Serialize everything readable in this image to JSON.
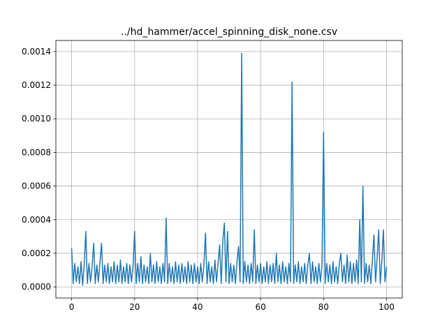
{
  "chart_data": {
    "type": "line",
    "title": "../hd_hammer/accel_spinning_disk_none.csv",
    "x": [
      0,
      0.5,
      1,
      1.5,
      2,
      2.5,
      3,
      3.5,
      4,
      4.5,
      5,
      5.5,
      6,
      6.5,
      7,
      7.5,
      8,
      8.5,
      9,
      9.5,
      10,
      10.5,
      11,
      11.5,
      12,
      12.5,
      13,
      13.5,
      14,
      14.5,
      15,
      15.5,
      16,
      16.5,
      17,
      17.5,
      18,
      18.5,
      19,
      19.5,
      20,
      20.5,
      21,
      21.5,
      22,
      22.5,
      23,
      23.5,
      24,
      24.5,
      25,
      25.5,
      26,
      26.5,
      27,
      27.5,
      28,
      28.5,
      29,
      29.5,
      30,
      30.5,
      31,
      31.5,
      32,
      32.5,
      33,
      33.5,
      34,
      34.5,
      35,
      35.5,
      36,
      36.5,
      37,
      37.5,
      38,
      38.5,
      39,
      39.5,
      40,
      40.5,
      41,
      41.5,
      42,
      42.5,
      43,
      43.5,
      44,
      44.5,
      45,
      45.5,
      46,
      46.5,
      47,
      47.5,
      48,
      48.5,
      49,
      49.5,
      50,
      50.5,
      51,
      51.5,
      52,
      52.5,
      53,
      53.5,
      54,
      54.5,
      55,
      55.5,
      56,
      56.5,
      57,
      57.5,
      58,
      58.5,
      59,
      59.5,
      60,
      60.5,
      61,
      61.5,
      62,
      62.5,
      63,
      63.5,
      64,
      64.5,
      65,
      65.5,
      66,
      66.5,
      67,
      67.5,
      68,
      68.5,
      69,
      69.5,
      70,
      70.5,
      71,
      71.5,
      72,
      72.5,
      73,
      73.5,
      74,
      74.5,
      75,
      75.5,
      76,
      76.5,
      77,
      77.5,
      78,
      78.5,
      79,
      79.5,
      80,
      80.5,
      81,
      81.5,
      82,
      82.5,
      83,
      83.5,
      84,
      84.5,
      85,
      85.5,
      86,
      86.5,
      87,
      87.5,
      88,
      88.5,
      89,
      89.5,
      90,
      90.5,
      91,
      91.5,
      92,
      92.5,
      93,
      93.5,
      94,
      94.5,
      95,
      95.5,
      96,
      96.5,
      97,
      97.5,
      98,
      98.5,
      99,
      99.5,
      100
    ],
    "series": [
      {
        "color": "#1f77b4",
        "values": [
          0.00023,
          2e-05,
          0.00014,
          3e-05,
          0.00012,
          2e-05,
          0.00015,
          1e-05,
          0.00013,
          0.00033,
          2e-05,
          0.00014,
          3e-05,
          0.00012,
          0.00026,
          2e-05,
          0.00013,
          3e-05,
          0.00015,
          0.00026,
          2e-05,
          0.00013,
          3e-05,
          0.00014,
          2e-05,
          0.00012,
          3e-05,
          0.00015,
          2e-05,
          0.00013,
          3e-05,
          0.00016,
          2e-05,
          0.00012,
          3e-05,
          0.00014,
          2e-05,
          0.00013,
          3e-05,
          0.00012,
          0.00033,
          2e-05,
          0.00014,
          3e-05,
          0.00018,
          2e-05,
          0.00013,
          3e-05,
          0.00012,
          2e-05,
          0.0002,
          3e-05,
          0.00013,
          2e-05,
          0.00015,
          3e-05,
          0.00012,
          2e-05,
          0.00014,
          3e-05,
          0.00041,
          2e-05,
          0.00014,
          3e-05,
          0.00012,
          2e-05,
          0.00015,
          3e-05,
          0.00013,
          2e-05,
          0.00014,
          3e-05,
          0.00012,
          2e-05,
          0.00015,
          3e-05,
          0.00013,
          2e-05,
          0.00014,
          3e-05,
          0.00012,
          2e-05,
          0.00014,
          3e-05,
          0.00013,
          0.00032,
          2e-05,
          0.00015,
          3e-05,
          0.00012,
          2e-05,
          0.00016,
          3e-05,
          0.00014,
          0.00025,
          2e-05,
          0.00027,
          0.00038,
          3e-05,
          0.00033,
          2e-05,
          0.00014,
          3e-05,
          0.00013,
          2e-05,
          0.00015,
          0.00024,
          3e-05,
          0.00139,
          2e-05,
          0.00015,
          3e-05,
          0.00013,
          2e-05,
          0.00014,
          3e-05,
          0.00034,
          2e-05,
          0.00013,
          3e-05,
          0.00014,
          2e-05,
          0.00012,
          3e-05,
          0.00015,
          2e-05,
          0.00013,
          3e-05,
          0.00014,
          2e-05,
          0.0002,
          3e-05,
          0.00013,
          2e-05,
          0.00015,
          3e-05,
          0.00012,
          2e-05,
          0.00014,
          3e-05,
          0.00122,
          2e-05,
          0.00013,
          3e-05,
          0.00015,
          2e-05,
          0.00012,
          3e-05,
          0.00014,
          2e-05,
          0.00013,
          0.0002,
          2e-05,
          0.00015,
          3e-05,
          0.00012,
          2e-05,
          0.00014,
          3e-05,
          0.00013,
          0.00092,
          2e-05,
          0.00014,
          3e-05,
          0.00013,
          2e-05,
          0.00015,
          3e-05,
          0.00012,
          2e-05,
          0.00014,
          0.0002,
          3e-05,
          0.00013,
          2e-05,
          0.00019,
          3e-05,
          0.00015,
          2e-05,
          0.00014,
          3e-05,
          0.00016,
          2e-05,
          0.0004,
          3e-05,
          0.0006,
          2e-05,
          0.00014,
          3e-05,
          0.00013,
          2e-05,
          0.00016,
          0.00031,
          3e-05,
          0.00017,
          0.00034,
          2e-05,
          0.00015,
          0.00034,
          3e-05,
          0.00012
        ]
      }
    ],
    "xlim": [
      -5,
      105
    ],
    "xticks": [
      0,
      20,
      40,
      60,
      80,
      100
    ],
    "ylim": [
      -6.6e-05,
      0.001466
    ],
    "yticks": [
      {
        "value": 0,
        "label": "0.0000"
      },
      {
        "value": 0.0002,
        "label": "0.0002"
      },
      {
        "value": 0.0004,
        "label": "0.0004"
      },
      {
        "value": 0.0006,
        "label": "0.0006"
      },
      {
        "value": 0.0008,
        "label": "0.0008"
      },
      {
        "value": 0.001,
        "label": "0.0010"
      },
      {
        "value": 0.0012,
        "label": "0.0012"
      },
      {
        "value": 0.0014,
        "label": "0.0014"
      }
    ],
    "grid": true
  }
}
